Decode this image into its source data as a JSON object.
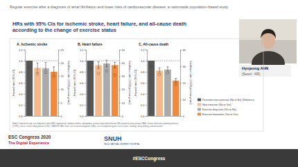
{
  "header": "Regular exercise after a diagnosis of atrial fibrillation and lower risks of cardiovascular disease: a nationwide population-based study",
  "slide_title": [
    "HRs with 95% CIs for ischemic stroke, heart failure, and all-cause death",
    "according to the change of exercise status"
  ],
  "chart_data": [
    {
      "type": "bar",
      "title": "A. Ischemic stroke",
      "y_label": "Hazard ratio (95% CI)",
      "y2_label": "Incidence rate (/1000 person-years)",
      "categories": [
        null,
        null,
        null,
        null
      ],
      "ylim": [
        0,
        1.2
      ],
      "yticks": [
        {
          "value": 0,
          "label": "0.0"
        },
        0.2,
        0.4,
        0.6,
        0.8,
        {
          "value": 1,
          "label": "1.0"
        },
        1.2
      ],
      "y2lim": [
        0,
        25
      ],
      "y2ticks": [
        0,
        5,
        10,
        15,
        20,
        25
      ],
      "reference_line": 1,
      "series": [
        {
          "type": "bar",
          "values": [
            1,
            0.87,
            0.86,
            0.8
          ],
          "ci_low": [
            null,
            0.78,
            0.77,
            0.73
          ],
          "ci_high": [
            null,
            0.96,
            0.97,
            0.89
          ],
          "colors": [
            "#555555",
            "#f5b88a",
            "#aaaaaa",
            "#f08a3c"
          ]
        },
        {
          "type": "scatter",
          "axis": "y2",
          "values": [
            18.2,
            15.8,
            16.5,
            14.9
          ],
          "ci_low": [
            17.5,
            14.2,
            14.9,
            13.6
          ],
          "ci_high": [
            18.9,
            17.4,
            18.1,
            16.2
          ],
          "colors": [
            "#555555",
            "#f5b88a",
            "#aaaaaa",
            "#f08a3c"
          ]
        }
      ]
    },
    {
      "type": "bar",
      "title": "B. Heart failure",
      "y_label": "Hazard ratio (95% CI)",
      "y2_label": "Incidence rate (/1000 person-years)",
      "categories": [
        null,
        null,
        null,
        null
      ],
      "ylim": [
        0,
        1.2
      ],
      "yticks": [
        {
          "value": 0,
          "label": "0.0"
        },
        0.2,
        0.4,
        0.6,
        0.8,
        {
          "value": 1,
          "label": "1.0"
        },
        1.2
      ],
      "y2lim": [
        0,
        50
      ],
      "y2ticks": [
        0,
        10,
        20,
        30,
        40,
        50
      ],
      "reference_line": 1,
      "series": [
        {
          "type": "bar",
          "values": [
            1,
            0.92,
            0.95,
            0.92
          ],
          "ci_low": [
            null,
            0.86,
            0.89,
            0.87
          ],
          "ci_high": [
            null,
            0.98,
            1.01,
            0.97
          ],
          "colors": [
            "#555555",
            "#f5b88a",
            "#aaaaaa",
            "#f08a3c"
          ]
        },
        {
          "type": "scatter",
          "axis": "y2",
          "values": [
            36,
            32,
            34,
            31
          ],
          "ci_low": [
            35,
            30,
            32,
            29.5
          ],
          "ci_high": [
            37,
            34,
            36,
            32.5
          ],
          "colors": [
            "#555555",
            "#f5b88a",
            "#aaaaaa",
            "#f08a3c"
          ]
        }
      ]
    },
    {
      "type": "bar",
      "title": "C. All-cause death",
      "y_label": "Hazard ratio (95% CI)",
      "y2_label": "Incidence rate (/1000 person-years)",
      "categories": [
        null,
        null,
        null,
        null
      ],
      "ylim": [
        0,
        1.2
      ],
      "yticks": [
        {
          "value": 0,
          "label": "0.0"
        },
        0.2,
        0.4,
        0.6,
        0.8,
        {
          "value": 1,
          "label": "1.0"
        },
        1.2
      ],
      "y2lim": [
        0,
        40
      ],
      "y2ticks": [
        0,
        10,
        20,
        30,
        40
      ],
      "reference_line": 1,
      "series": [
        {
          "type": "bar",
          "values": [
            1,
            0.82,
            0.84,
            0.64
          ],
          "ci_low": [
            null,
            0.77,
            0.79,
            0.6
          ],
          "ci_high": [
            null,
            0.87,
            0.89,
            0.68
          ],
          "colors": [
            "#555555",
            "#f5b88a",
            "#aaaaaa",
            "#f08a3c"
          ]
        },
        {
          "type": "scatter",
          "axis": "y2",
          "values": [
            30,
            25,
            26,
            19
          ],
          "ci_low": [
            29.3,
            23.6,
            24.7,
            18
          ],
          "ci_high": [
            30.7,
            26.4,
            27.3,
            20
          ],
          "colors": [
            "#555555",
            "#f5b88a",
            "#aaaaaa",
            "#f08a3c"
          ]
        }
      ]
    }
  ],
  "legend_entries": [
    {
      "label": "Persistent non-exerciser (No to No), Reference",
      "color": "#555555"
    },
    {
      "label": "New exerciser (No to Yes)",
      "color": "#f5b88a"
    },
    {
      "label": "Exercise drop-outs (Yes to No)",
      "color": "#aaaaaa"
    },
    {
      "label": "Exercise maintainer (Yes to Yes)",
      "color": "#f08a3c"
    }
  ],
  "footnote": [
    "Model 1 adjusted for age, sex, body mass index (BMI), hypertension, diabetes mellitus, dyslipidemia, previous myocardial infarction (MI), peripheral artery disease (PAD), chronic obstructive pulmonary disease",
    "(COPD), cancer, chronic kidney disease (CKD), CHA2DS2-VASc score, use of oral anticoagulants (OAC), use of antiplatelet agents, use of statins, smoking, heavy drinking, and low income."
  ],
  "speaker": {
    "name": "Hyojeong AHN",
    "place": "(Seoul - KR)"
  },
  "footer": {
    "congress": "ESC Congress 2020",
    "subtitle": "The Digital Experience",
    "logo": "SNUH",
    "logo_text": "SEOUL NATIONAL UNIVERSITY HOSPITAL",
    "hashtag": "#ESCCongress"
  }
}
